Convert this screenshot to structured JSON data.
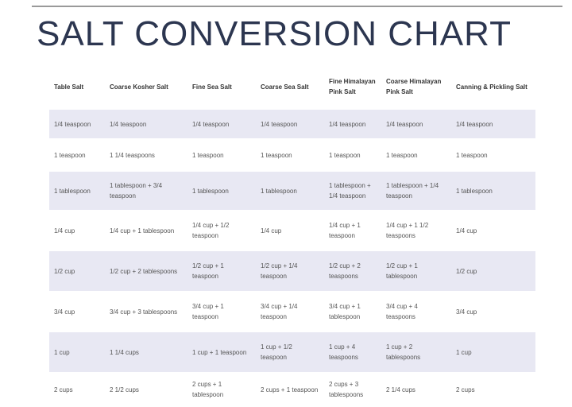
{
  "title": "SALT CONVERSION CHART",
  "table": {
    "header": [
      "Table Salt",
      "Coarse Kosher Salt",
      "Fine Sea Salt",
      "Coarse Sea Salt",
      "Fine Himalayan Pink Salt",
      "Coarse Himalayan Pink Salt",
      "Canning & Pickling Salt"
    ],
    "rows": [
      [
        "1/4 teaspoon",
        "1/4 teaspoon",
        "1/4 teaspoon",
        "1/4 teaspoon",
        "1/4 teaspoon",
        "1/4 teaspoon",
        "1/4 teaspoon"
      ],
      [
        "1 teaspoon",
        "1 1/4 teaspoons",
        "1 teaspoon",
        "1 teaspoon",
        "1 teaspoon",
        "1 teaspoon",
        "1 teaspoon"
      ],
      [
        "1 tablespoon",
        "1 tablespoon + 3/4 teaspoon",
        "1 tablespoon",
        "1 tablespoon",
        "1 tablespoon + 1/4 teaspoon",
        "1 tablespoon + 1/4 teaspoon",
        "1 tablespoon"
      ],
      [
        "1/4 cup",
        "1/4 cup + 1 tablespoon",
        "1/4 cup + 1/2 teaspoon",
        "1/4 cup",
        "1/4 cup + 1 teaspoon",
        "1/4 cup + 1 1/2 teaspoons",
        "1/4 cup"
      ],
      [
        "1/2 cup",
        "1/2 cup + 2 tablespoons",
        "1/2 cup + 1 teaspoon",
        "1/2 cup + 1/4 teaspoon",
        "1/2 cup + 2 teaspoons",
        "1/2 cup + 1 tablespoon",
        "1/2 cup"
      ],
      [
        "3/4 cup",
        "3/4 cup + 3 tablespoons",
        "3/4 cup + 1 teaspoon",
        "3/4 cup + 1/4 teaspoon",
        "3/4 cup + 1 tablespoon",
        "3/4 cup + 4 teaspoons",
        "3/4 cup"
      ],
      [
        "1 cup",
        "1 1/4 cups",
        "1 cup + 1 teaspoon",
        "1 cup + 1/2 teaspoon",
        "1 cup + 4 teaspoons",
        "1 cup + 2 tablespoons",
        "1 cup"
      ],
      [
        "2 cups",
        "2 1/2 cups",
        "2 cups + 1 tablespoon",
        "2 cups + 1 teaspoon",
        "2 cups + 3 tablespoons",
        "2 1/4 cups",
        "2 cups"
      ]
    ]
  }
}
